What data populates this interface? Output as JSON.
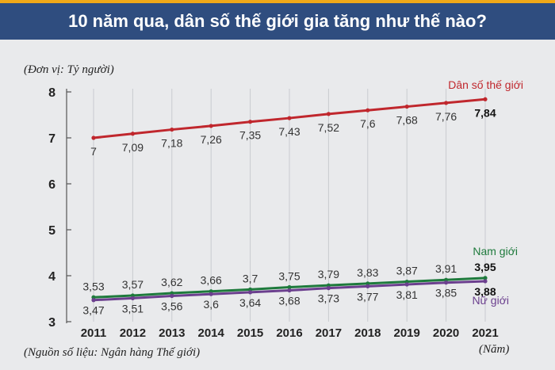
{
  "header": {
    "title": "10 năm qua, dân số thế giới gia tăng như thế nào?"
  },
  "notes": {
    "unit": "(Đơn vị: Tỷ người)",
    "source": "(Nguồn số liệu: Ngân hàng Thế giới)",
    "x_unit": "(Năm)"
  },
  "colors": {
    "header_bg": "#2f4d7f",
    "accent_line": "#f0a818",
    "background": "#e9eaec"
  },
  "chart_data": {
    "type": "line",
    "title": "10 năm qua, dân số thế giới gia tăng như thế nào?",
    "ylabel": "(Đơn vị: Tỷ người)",
    "xlabel": "(Năm)",
    "ylim": [
      3,
      8
    ],
    "yticks": [
      "3",
      "4",
      "5",
      "6",
      "7",
      "8"
    ],
    "x": [
      "2011",
      "2012",
      "2013",
      "2014",
      "2015",
      "2016",
      "2017",
      "2018",
      "2019",
      "2020",
      "2021"
    ],
    "grid": "vertical",
    "series": [
      {
        "name": "Dân số thế giới",
        "color": "#c0272d",
        "values": [
          7,
          7.09,
          7.18,
          7.26,
          7.35,
          7.43,
          7.52,
          7.6,
          7.68,
          7.76,
          7.84
        ],
        "labels": [
          "7",
          "7,09",
          "7,18",
          "7,26",
          "7,35",
          "7,43",
          "7,52",
          "7,6",
          "7,68",
          "7,76",
          "7,84"
        ]
      },
      {
        "name": "Nam giới",
        "color": "#1e7a3c",
        "values": [
          3.53,
          3.57,
          3.62,
          3.66,
          3.7,
          3.75,
          3.79,
          3.83,
          3.87,
          3.91,
          3.95
        ],
        "labels": [
          "3,53",
          "3,57",
          "3,62",
          "3,66",
          "3,7",
          "3,75",
          "3,79",
          "3,83",
          "3,87",
          "3,91",
          "3,95"
        ]
      },
      {
        "name": "Nữ giới",
        "color": "#6b3f8e",
        "values": [
          3.47,
          3.51,
          3.56,
          3.6,
          3.64,
          3.68,
          3.73,
          3.77,
          3.81,
          3.85,
          3.88
        ],
        "labels": [
          "3,47",
          "3,51",
          "3,56",
          "3,6",
          "3,64",
          "3,68",
          "3,73",
          "3,77",
          "3,81",
          "3,85",
          "3,88"
        ]
      }
    ],
    "source": "(Nguồn số liệu: Ngân hàng Thế giới)"
  }
}
